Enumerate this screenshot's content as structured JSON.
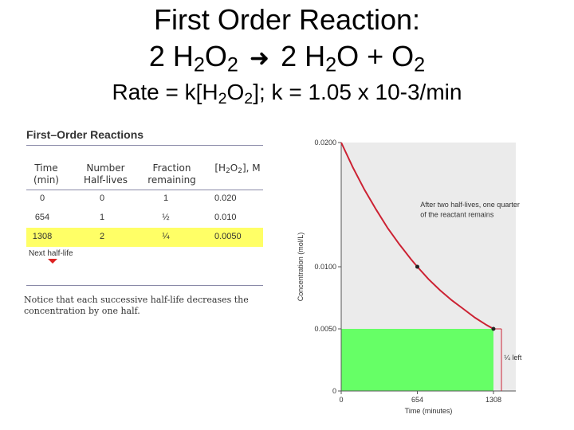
{
  "title": {
    "line1": "First Order Reaction:",
    "eq_coef1": "2 H",
    "eq_sub1": "2",
    "eq_mid1": "O",
    "eq_sub2": "2",
    "eq_coef2": "2 H",
    "eq_sub3": "2",
    "eq_mid2": "O + O",
    "eq_sub4": "2",
    "rate_a": "Rate = k[H",
    "rate_sub1": "2",
    "rate_b": "O",
    "rate_sub2": "2",
    "rate_c": "];  k = 1.05 x 10-3/min"
  },
  "table": {
    "title": "First–Order Reactions",
    "headers": {
      "time": [
        "Time",
        "(min)"
      ],
      "half_lives": [
        "Number",
        "Half-lives"
      ],
      "fraction": [
        "Fraction",
        "remaining"
      ],
      "conc_a": "[H",
      "conc_sub1": "2",
      "conc_b": "O",
      "conc_sub2": "2",
      "conc_c": "], M"
    },
    "rows": [
      {
        "time": "0",
        "half_lives": "0",
        "fraction": "1",
        "conc": "0.020"
      },
      {
        "time": "654",
        "half_lives": "1",
        "fraction": "½",
        "conc": "0.010"
      },
      {
        "time": "1308",
        "half_lives": "2",
        "fraction": "¼",
        "conc": "0.0050"
      }
    ],
    "highlight_color": "#ffff66",
    "next_label": "Next half-life",
    "notice": "Notice that each successive half-life decreases the concentration by one half."
  },
  "chart_data": {
    "type": "line",
    "title": "",
    "xlabel": "Time (minutes)",
    "ylabel": "Concentration (mol/L)",
    "xlim": [
      0,
      1500
    ],
    "ylim": [
      0,
      0.02
    ],
    "x_ticks": [
      {
        "value": 0,
        "label": "0"
      },
      {
        "value": 654,
        "label": "654"
      },
      {
        "value": 1308,
        "label": "1308"
      }
    ],
    "y_ticks": [
      {
        "value": 0,
        "label": "0"
      },
      {
        "value": 0.005,
        "label": "0.0050"
      },
      {
        "value": 0.01,
        "label": "0.0100"
      },
      {
        "value": 0.02,
        "label": "0.0200"
      }
    ],
    "series": [
      {
        "values": [
          {
            "x": 0,
            "y": 0.02
          },
          {
            "x": 100,
            "y": 0.018
          },
          {
            "x": 200,
            "y": 0.0162
          },
          {
            "x": 300,
            "y": 0.0146
          },
          {
            "x": 400,
            "y": 0.0131
          },
          {
            "x": 500,
            "y": 0.0118
          },
          {
            "x": 600,
            "y": 0.0106
          },
          {
            "x": 654,
            "y": 0.01
          },
          {
            "x": 750,
            "y": 0.009
          },
          {
            "x": 850,
            "y": 0.0081
          },
          {
            "x": 950,
            "y": 0.0073
          },
          {
            "x": 1050,
            "y": 0.0066
          },
          {
            "x": 1150,
            "y": 0.0059
          },
          {
            "x": 1250,
            "y": 0.0053
          },
          {
            "x": 1308,
            "y": 0.005
          }
        ]
      }
    ],
    "points": [
      {
        "x": 654,
        "y": 0.01
      },
      {
        "x": 1308,
        "y": 0.005
      }
    ],
    "highlight_region": {
      "x": [
        0,
        1308
      ],
      "y": [
        0,
        0.005
      ]
    },
    "annotations": [
      {
        "text": "After two half-lives, one quarter",
        "x": 680,
        "y": 0.0148
      },
      {
        "text": "of the reactant remains",
        "x": 680,
        "y": 0.014
      },
      {
        "text": "¼ left",
        "x": 1400,
        "y": 0.0025
      }
    ],
    "colors": {
      "curve": "#cc2233",
      "region": "#66ff66",
      "plot_bg": "#ebebeb",
      "point": "#222222",
      "guide": "#cc2233"
    }
  }
}
